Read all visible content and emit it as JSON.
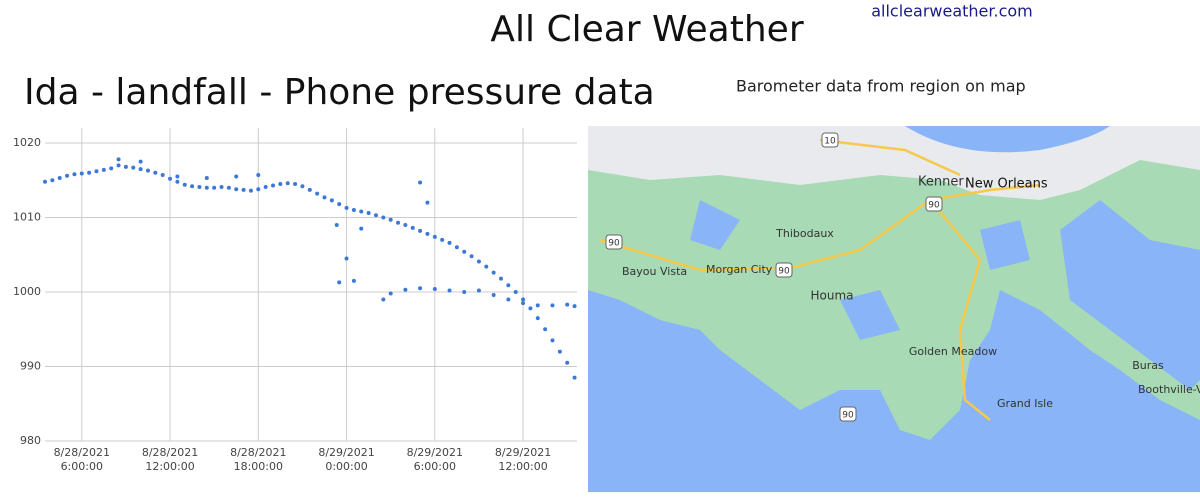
{
  "header": {
    "title": "All Clear Weather",
    "link": "allclearweather.com",
    "subtitle": "Ida - landfall - Phone pressure data",
    "map_caption": "Barometer data from region on map"
  },
  "chart_data": {
    "type": "scatter",
    "color": "#3c78d8",
    "grid": true,
    "xlim": [
      "2021-08-28T03:30:00",
      "2021-08-29T15:40:00"
    ],
    "xticks": [
      {
        "value": "2021-08-28T06:00:00",
        "label": "8/28/2021 6:00:00"
      },
      {
        "value": "2021-08-28T12:00:00",
        "label": "8/28/2021 12:00:00"
      },
      {
        "value": "2021-08-28T18:00:00",
        "label": "8/28/2021 18:00:00"
      },
      {
        "value": "2021-08-29T00:00:00",
        "label": "8/29/2021 0:00:00"
      },
      {
        "value": "2021-08-29T06:00:00",
        "label": "8/29/2021 6:00:00"
      },
      {
        "value": "2021-08-29T12:00:00",
        "label": "8/29/2021 12:00:00"
      }
    ],
    "ylim": [
      980,
      1020
    ],
    "yticks": [
      980,
      990,
      1000,
      1010,
      1020
    ],
    "x": [
      "2021-08-28T03:30:00",
      "2021-08-28T04:00:00",
      "2021-08-28T04:30:00",
      "2021-08-28T05:00:00",
      "2021-08-28T05:30:00",
      "2021-08-28T06:00:00",
      "2021-08-28T06:30:00",
      "2021-08-28T07:00:00",
      "2021-08-28T07:30:00",
      "2021-08-28T08:00:00",
      "2021-08-28T08:30:00",
      "2021-08-28T09:00:00",
      "2021-08-28T09:30:00",
      "2021-08-28T10:00:00",
      "2021-08-28T10:30:00",
      "2021-08-28T11:00:00",
      "2021-08-28T11:30:00",
      "2021-08-28T12:00:00",
      "2021-08-28T12:30:00",
      "2021-08-28T13:00:00",
      "2021-08-28T13:30:00",
      "2021-08-28T14:00:00",
      "2021-08-28T14:30:00",
      "2021-08-28T15:00:00",
      "2021-08-28T15:30:00",
      "2021-08-28T16:00:00",
      "2021-08-28T16:30:00",
      "2021-08-28T17:00:00",
      "2021-08-28T17:30:00",
      "2021-08-28T18:00:00",
      "2021-08-28T18:30:00",
      "2021-08-28T19:00:00",
      "2021-08-28T19:30:00",
      "2021-08-28T20:00:00",
      "2021-08-28T20:30:00",
      "2021-08-28T21:00:00",
      "2021-08-28T21:30:00",
      "2021-08-28T22:00:00",
      "2021-08-28T22:30:00",
      "2021-08-28T23:00:00",
      "2021-08-28T23:30:00",
      "2021-08-29T00:00:00",
      "2021-08-29T00:30:00",
      "2021-08-29T01:00:00",
      "2021-08-29T01:30:00",
      "2021-08-29T02:00:00",
      "2021-08-29T02:30:00",
      "2021-08-29T03:00:00",
      "2021-08-29T03:30:00",
      "2021-08-29T04:00:00",
      "2021-08-29T04:30:00",
      "2021-08-29T05:00:00",
      "2021-08-29T05:30:00",
      "2021-08-29T06:00:00",
      "2021-08-29T06:30:00",
      "2021-08-29T07:00:00",
      "2021-08-29T07:30:00",
      "2021-08-29T08:00:00",
      "2021-08-29T08:30:00",
      "2021-08-29T09:00:00",
      "2021-08-29T09:30:00",
      "2021-08-29T10:00:00",
      "2021-08-29T10:30:00",
      "2021-08-29T11:00:00",
      "2021-08-29T11:30:00",
      "2021-08-29T12:00:00",
      "2021-08-29T12:30:00",
      "2021-08-29T13:00:00",
      "2021-08-29T13:30:00",
      "2021-08-29T14:00:00",
      "2021-08-29T14:30:00",
      "2021-08-29T15:00:00",
      "2021-08-29T15:30:00",
      "2021-08-28T08:30:00",
      "2021-08-28T10:00:00",
      "2021-08-28T12:30:00",
      "2021-08-28T14:30:00",
      "2021-08-28T16:30:00",
      "2021-08-28T18:00:00",
      "2021-08-29T02:30:00",
      "2021-08-29T03:00:00",
      "2021-08-29T04:00:00",
      "2021-08-29T05:00:00",
      "2021-08-29T06:00:00",
      "2021-08-29T07:00:00",
      "2021-08-29T08:00:00",
      "2021-08-29T09:00:00",
      "2021-08-29T10:00:00",
      "2021-08-29T11:00:00",
      "2021-08-29T12:00:00",
      "2021-08-29T13:00:00",
      "2021-08-29T14:00:00",
      "2021-08-29T15:00:00",
      "2021-08-29T15:30:00",
      "2021-08-28T23:20:00",
      "2021-08-28T23:30:00",
      "2021-08-29T00:00:00",
      "2021-08-29T00:30:00",
      "2021-08-29T01:00:00",
      "2021-08-29T05:00:00",
      "2021-08-29T05:30:00"
    ],
    "values": [
      1014.8,
      1015.0,
      1015.3,
      1015.6,
      1015.8,
      1015.9,
      1016.0,
      1016.2,
      1016.4,
      1016.6,
      1017.0,
      1016.8,
      1016.7,
      1016.5,
      1016.3,
      1016.0,
      1015.7,
      1015.2,
      1014.8,
      1014.4,
      1014.2,
      1014.1,
      1014.0,
      1014.0,
      1014.1,
      1014.0,
      1013.8,
      1013.7,
      1013.6,
      1013.8,
      1014.1,
      1014.3,
      1014.5,
      1014.6,
      1014.5,
      1014.2,
      1013.7,
      1013.2,
      1012.7,
      1012.3,
      1011.8,
      1011.3,
      1011.0,
      1010.8,
      1010.6,
      1010.3,
      1010.0,
      1009.7,
      1009.3,
      1009.0,
      1008.6,
      1008.2,
      1007.8,
      1007.4,
      1007.0,
      1006.6,
      1006.0,
      1005.4,
      1004.8,
      1004.1,
      1003.4,
      1002.6,
      1001.8,
      1000.9,
      1000.0,
      999.0,
      997.8,
      996.5,
      995.0,
      993.5,
      992.0,
      990.5,
      988.5,
      1017.8,
      1017.5,
      1015.5,
      1015.3,
      1015.5,
      1015.7,
      999.0,
      999.8,
      1000.3,
      1000.5,
      1000.4,
      1000.2,
      1000.0,
      1000.2,
      999.6,
      999.0,
      998.5,
      998.2,
      998.2,
      998.3,
      998.1,
      1009.0,
      1001.3,
      1004.5,
      1001.5,
      1008.5,
      1014.7,
      1012.0
    ]
  },
  "map": {
    "labels": [
      "Kenner",
      "New Orleans",
      "Thibodaux",
      "Bayou Vista",
      "Morgan City",
      "Houma",
      "Golden Meadow",
      "Grand Isle",
      "Buras",
      "Boothville-Ve"
    ],
    "highways": [
      "10",
      "90",
      "90",
      "90",
      "90"
    ]
  }
}
